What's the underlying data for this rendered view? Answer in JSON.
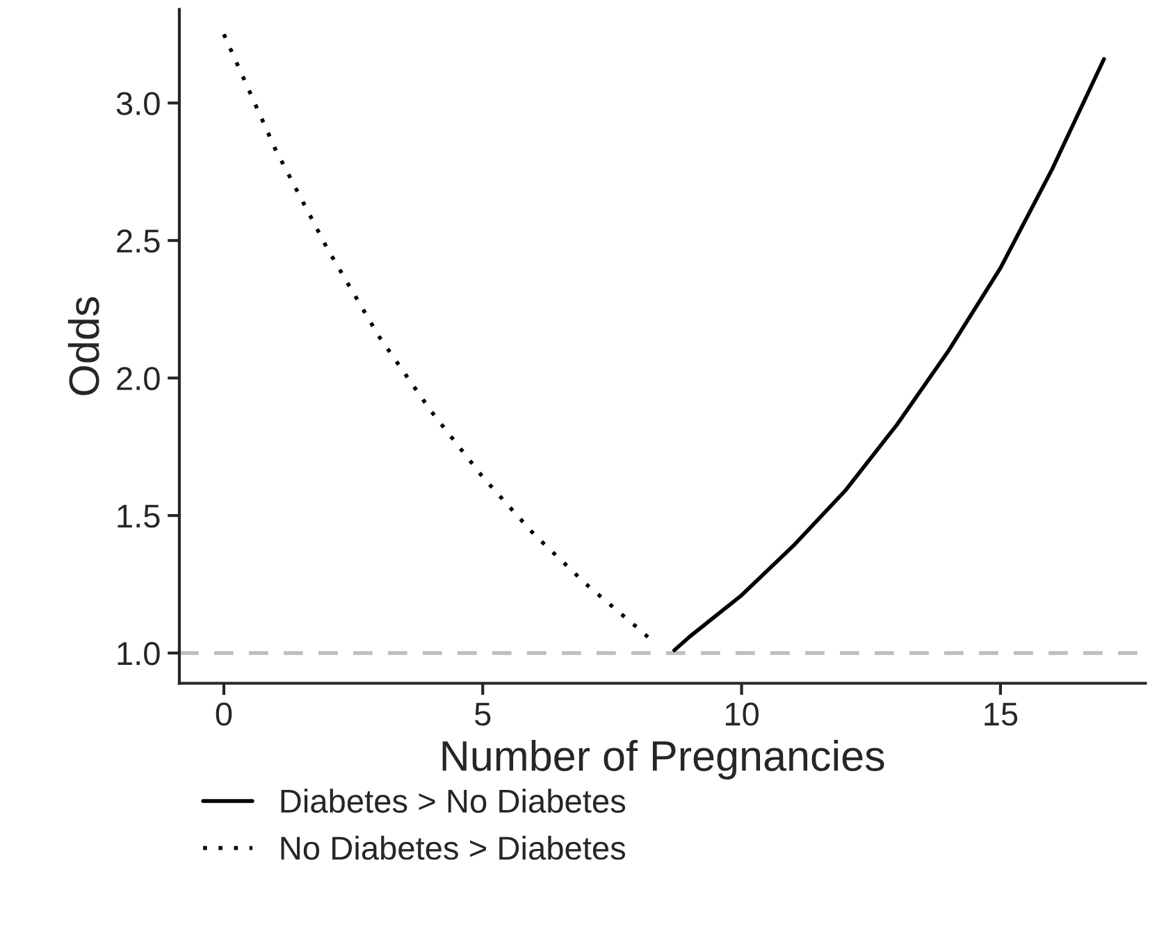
{
  "chart_data": {
    "type": "line",
    "xlabel": "Number of Pregnancies",
    "ylabel": "Odds",
    "series": [
      {
        "name": "Diabetes > No Diabetes",
        "color": "#000000",
        "line_style": "solid",
        "x": [
          8.7,
          9,
          10,
          11,
          12,
          13,
          14,
          15,
          16,
          17
        ],
        "values": [
          1.01,
          1.06,
          1.21,
          1.39,
          1.59,
          1.83,
          2.1,
          2.4,
          2.76,
          3.16
        ]
      },
      {
        "name": "No Diabetes > Diabetes",
        "color": "#000000",
        "line_style": "dotted",
        "x": [
          0,
          1,
          2,
          3,
          4,
          5,
          6,
          7,
          8,
          8.3
        ],
        "values": [
          3.25,
          2.83,
          2.47,
          2.15,
          1.88,
          1.64,
          1.43,
          1.25,
          1.09,
          1.04
        ]
      }
    ],
    "xlim": [
      -0.86,
      17.8
    ],
    "ylim": [
      0.89,
      3.34
    ],
    "xticks": [
      0,
      5,
      10,
      15
    ],
    "yticks": [
      {
        "value": 1,
        "label": "1.0"
      },
      {
        "value": 1.5,
        "label": "1.5"
      },
      {
        "value": 2,
        "label": "2.0"
      },
      {
        "value": 2.5,
        "label": "2.5"
      },
      {
        "value": 3,
        "label": "3.0"
      }
    ],
    "ref_lines": [
      {
        "axis": "y",
        "value": 1,
        "label": null,
        "color": "#bebebe",
        "line_style": "dashed"
      }
    ],
    "grid": false,
    "legend": "bottom"
  }
}
